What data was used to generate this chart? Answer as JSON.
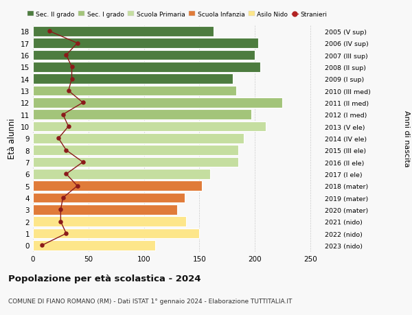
{
  "ages": [
    0,
    1,
    2,
    3,
    4,
    5,
    6,
    7,
    8,
    9,
    10,
    11,
    12,
    13,
    14,
    15,
    16,
    17,
    18
  ],
  "bar_values": [
    110,
    150,
    138,
    130,
    137,
    152,
    160,
    185,
    185,
    190,
    210,
    197,
    225,
    183,
    180,
    205,
    200,
    203,
    163
  ],
  "bar_colors": [
    "#fde68a",
    "#fde68a",
    "#fde68a",
    "#e07b39",
    "#e07b39",
    "#e07b39",
    "#c5dea0",
    "#c5dea0",
    "#c5dea0",
    "#c5dea0",
    "#c5dea0",
    "#a3c47a",
    "#a3c47a",
    "#a3c47a",
    "#4d7c3f",
    "#4d7c3f",
    "#4d7c3f",
    "#4d7c3f",
    "#4d7c3f"
  ],
  "stranieri_values": [
    8,
    30,
    25,
    25,
    27,
    40,
    30,
    45,
    30,
    23,
    32,
    27,
    45,
    32,
    35,
    35,
    30,
    40,
    15
  ],
  "right_labels": [
    "2023 (nido)",
    "2022 (nido)",
    "2021 (nido)",
    "2020 (mater)",
    "2019 (mater)",
    "2018 (mater)",
    "2017 (I ele)",
    "2016 (II ele)",
    "2015 (III ele)",
    "2014 (IV ele)",
    "2013 (V ele)",
    "2012 (I med)",
    "2011 (II med)",
    "2010 (III med)",
    "2009 (I sup)",
    "2008 (II sup)",
    "2007 (III sup)",
    "2006 (IV sup)",
    "2005 (V sup)"
  ],
  "legend_labels": [
    "Sec. II grado",
    "Sec. I grado",
    "Scuola Primaria",
    "Scuola Infanzia",
    "Asilo Nido",
    "Stranieri"
  ],
  "legend_colors": [
    "#4d7c3f",
    "#a3c47a",
    "#c5dea0",
    "#e07b39",
    "#fde68a",
    "#b22222"
  ],
  "ylabel": "Età alunni",
  "right_ylabel": "Anni di nascita",
  "title": "Popolazione per età scolastica - 2024",
  "subtitle": "COMUNE DI FIANO ROMANO (RM) - Dati ISTAT 1° gennaio 2024 - Elaborazione TUTTITALIA.IT",
  "xlim": [
    0,
    260
  ],
  "xticks": [
    0,
    50,
    100,
    150,
    200,
    250
  ],
  "bg_color": "#f8f8f8"
}
